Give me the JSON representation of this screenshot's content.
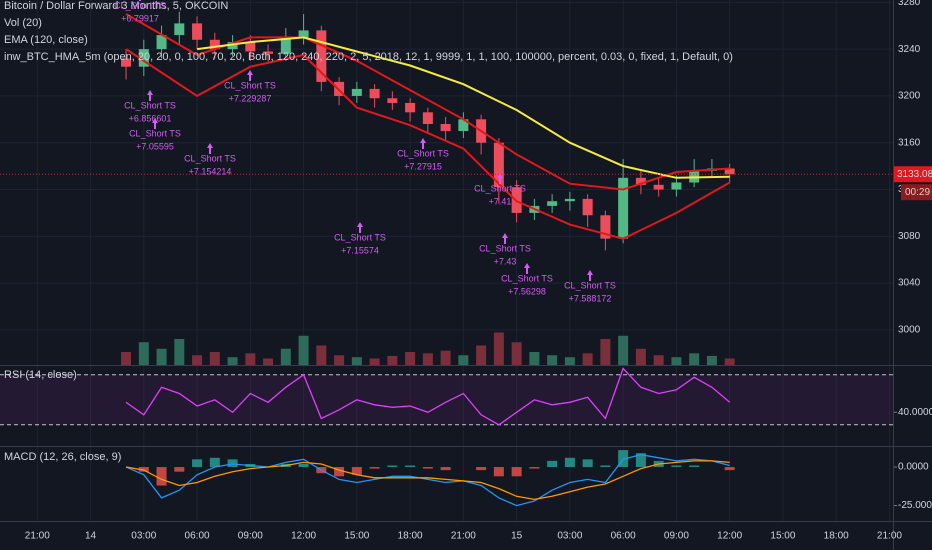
{
  "chart_data": [
    {
      "type": "candlestick",
      "title": "Bitcoin / Dollar Forward 3 Months, 5, OKCOIN",
      "indicator": "inw_BTC_HMA_5m (open, 20, 20, 0, 100, 70, 20, Both, 120, 240, 220, 2, 5, 2018, 12, 1, 9999, 1, 1, 100, 100000, percent, 0.03, 0, fixed, 1, Default, 0)",
      "xlim": [
        -2.1,
        48.2
      ],
      "xticks": [
        {
          "value": 0,
          "label": "21:00"
        },
        {
          "value": 3,
          "label": "14"
        },
        {
          "value": 6,
          "label": "03:00"
        },
        {
          "value": 9,
          "label": "06:00"
        },
        {
          "value": 12,
          "label": "09:00"
        },
        {
          "value": 15,
          "label": "12:00"
        },
        {
          "value": 18,
          "label": "15:00"
        },
        {
          "value": 21,
          "label": "18:00"
        },
        {
          "value": 24,
          "label": "21:00"
        },
        {
          "value": 27,
          "label": "15"
        },
        {
          "value": 30,
          "label": "03:00"
        },
        {
          "value": 33,
          "label": "06:00"
        },
        {
          "value": 36,
          "label": "09:00"
        },
        {
          "value": 39,
          "label": "12:00"
        },
        {
          "value": 42,
          "label": "15:00"
        },
        {
          "value": 45,
          "label": "18:00"
        },
        {
          "value": 48,
          "label": "21:00"
        }
      ],
      "ylim": [
        2970,
        3282
      ],
      "yticks": [
        3000,
        3040,
        3080,
        3120,
        3160,
        3200,
        3240,
        3280
      ],
      "grid": true,
      "up_color": "#53b987",
      "down_color": "#eb4d5c",
      "x": [
        5,
        6,
        7,
        8,
        9,
        10,
        11,
        12,
        13,
        14,
        15,
        16,
        17,
        18,
        19,
        20,
        21,
        22,
        23,
        24,
        25,
        26,
        27,
        28,
        29,
        30,
        31,
        32,
        33,
        34,
        35,
        36,
        37,
        38,
        39
      ],
      "open": [
        3232,
        3225,
        3240,
        3252,
        3262,
        3248,
        3240,
        3246,
        3238,
        3236,
        3250,
        3256,
        3212,
        3200,
        3206,
        3198,
        3194,
        3186,
        3176,
        3170,
        3180,
        3160,
        3122,
        3100,
        3106,
        3110,
        3112,
        3098,
        3078,
        3130,
        3124,
        3120,
        3126,
        3136,
        3138
      ],
      "high": [
        3240,
        3248,
        3260,
        3272,
        3268,
        3254,
        3252,
        3252,
        3244,
        3258,
        3270,
        3260,
        3216,
        3212,
        3210,
        3204,
        3198,
        3190,
        3182,
        3186,
        3184,
        3164,
        3128,
        3112,
        3116,
        3118,
        3116,
        3102,
        3146,
        3136,
        3130,
        3132,
        3146,
        3146,
        3142
      ],
      "low": [
        3214,
        3217,
        3232,
        3244,
        3240,
        3232,
        3234,
        3230,
        3228,
        3230,
        3244,
        3204,
        3192,
        3194,
        3190,
        3188,
        3178,
        3168,
        3162,
        3164,
        3150,
        3108,
        3092,
        3094,
        3100,
        3102,
        3088,
        3068,
        3074,
        3116,
        3114,
        3114,
        3122,
        3130,
        3126
      ],
      "close": [
        3225,
        3240,
        3252,
        3262,
        3248,
        3240,
        3246,
        3238,
        3236,
        3250,
        3256,
        3212,
        3200,
        3206,
        3198,
        3194,
        3186,
        3176,
        3170,
        3180,
        3160,
        3122,
        3100,
        3106,
        3110,
        3112,
        3098,
        3078,
        3130,
        3124,
        3120,
        3126,
        3136,
        3138,
        3133
      ],
      "series": [
        {
          "name": "EMA (120, close)",
          "color": "#f5ec42",
          "x": [
            9,
            12,
            15,
            18,
            21,
            24,
            27,
            30,
            33,
            36,
            39
          ],
          "values": [
            3240,
            3246,
            3250,
            3238,
            3226,
            3210,
            3188,
            3160,
            3140,
            3130,
            3131
          ]
        }
      ],
      "overlays": [
        {
          "color": "#e0191c",
          "x": [
            5,
            9,
            12,
            15,
            18,
            21,
            24,
            27,
            30,
            33,
            36,
            39
          ],
          "values": [
            3270,
            3235,
            3250,
            3250,
            3230,
            3205,
            3180,
            3150,
            3125,
            3120,
            3135,
            3138
          ]
        },
        {
          "color": "#e0191c",
          "x": [
            5,
            9,
            12,
            15,
            18,
            21,
            24,
            27,
            30,
            33,
            36,
            39
          ],
          "values": [
            3240,
            3200,
            3225,
            3235,
            3190,
            3175,
            3155,
            3110,
            3090,
            3078,
            3100,
            3126
          ]
        }
      ],
      "last_price": 3133.08,
      "timer": "00:29",
      "annotations": [
        {
          "label": "CL_Short TS",
          "value": "+6.79917"
        },
        {
          "label": "CL_Short TS",
          "value": "+6.856601"
        },
        {
          "label": "CL_Short TS",
          "value": "+7.05595"
        },
        {
          "label": "CL_Short TS",
          "value": "+7.154214"
        },
        {
          "label": "CL_Short TS",
          "value": "+7.229287"
        },
        {
          "label": "CL_Short TS",
          "value": "+7.15574"
        },
        {
          "label": "CL_Short TS",
          "value": "+7.27915"
        },
        {
          "label": "CL_Short TS",
          "value": "+7.41"
        },
        {
          "label": "CL_Short TS",
          "value": "+7.43"
        },
        {
          "label": "CL_Short TS",
          "value": "+7.56298"
        },
        {
          "label": "CL_Short TS",
          "value": "+7.588172"
        }
      ]
    },
    {
      "type": "bar",
      "name": "Vol (20)",
      "ylim": [
        0,
        100
      ],
      "up_color": "#2e6b5a",
      "down_color": "#7a2f3a",
      "x": [
        5,
        6,
        7,
        8,
        9,
        10,
        11,
        12,
        13,
        14,
        15,
        16,
        17,
        18,
        19,
        20,
        21,
        22,
        23,
        24,
        25,
        26,
        27,
        28,
        29,
        30,
        31,
        32,
        33,
        34,
        35,
        36,
        37,
        38,
        39
      ],
      "values": [
        20,
        35,
        25,
        40,
        15,
        20,
        12,
        18,
        10,
        25,
        45,
        30,
        15,
        12,
        10,
        14,
        20,
        18,
        22,
        15,
        30,
        50,
        35,
        20,
        15,
        12,
        18,
        40,
        45,
        25,
        15,
        12,
        18,
        14,
        10
      ]
    },
    {
      "type": "line",
      "title": "RSI (14, close)",
      "ylim": [
        13,
        77
      ],
      "yticks": [
        {
          "value": 40,
          "label": "40.0000"
        }
      ],
      "bands": [
        30,
        70
      ],
      "series": [
        {
          "color": "#e040fb",
          "x": [
            5,
            6,
            7,
            8,
            9,
            10,
            11,
            12,
            13,
            14,
            15,
            16,
            17,
            18,
            19,
            20,
            21,
            22,
            23,
            24,
            25,
            26,
            27,
            28,
            29,
            30,
            31,
            32,
            33,
            34,
            35,
            36,
            37,
            38,
            39
          ],
          "values": [
            48,
            38,
            60,
            55,
            45,
            50,
            40,
            55,
            48,
            60,
            70,
            35,
            42,
            50,
            46,
            44,
            45,
            40,
            48,
            55,
            38,
            30,
            40,
            50,
            46,
            48,
            52,
            35,
            75,
            60,
            55,
            58,
            68,
            60,
            48
          ]
        }
      ]
    },
    {
      "type": "line",
      "title": "MACD (12, 26, close, 9)",
      "ylim": [
        -35,
        13
      ],
      "yticks": [
        {
          "value": 0,
          "label": "0.0000"
        },
        {
          "value": -25,
          "label": "-25.0000"
        }
      ],
      "x": [
        5,
        6,
        7,
        8,
        9,
        10,
        11,
        12,
        13,
        14,
        15,
        16,
        17,
        18,
        19,
        20,
        21,
        22,
        23,
        24,
        25,
        26,
        27,
        28,
        29,
        30,
        31,
        32,
        33,
        34,
        35,
        36,
        37,
        38,
        39
      ],
      "histogram": [
        0,
        -3,
        -12,
        -3,
        5,
        6,
        5,
        2,
        0,
        2,
        2,
        -4,
        -6,
        -5,
        -1,
        1,
        1,
        -1,
        -2,
        0,
        -2,
        -6,
        -6,
        -1,
        4,
        6,
        5,
        1,
        11,
        9,
        4,
        1,
        1,
        0,
        -2
      ],
      "histogram_colors": [
        "#26a69a",
        "#ef5350"
      ],
      "series": [
        {
          "color": "#2196f3",
          "x": [
            5,
            6,
            7,
            8,
            9,
            10,
            11,
            12,
            13,
            14,
            15,
            16,
            17,
            18,
            19,
            20,
            21,
            22,
            23,
            24,
            25,
            26,
            27,
            28,
            29,
            30,
            31,
            32,
            33,
            34,
            35,
            36,
            37,
            38,
            39
          ],
          "values": [
            0,
            -5,
            -20,
            -15,
            -5,
            0,
            2,
            1,
            0,
            3,
            5,
            -2,
            -8,
            -10,
            -8,
            -6,
            -6,
            -8,
            -10,
            -9,
            -12,
            -20,
            -25,
            -22,
            -15,
            -10,
            -8,
            -10,
            5,
            8,
            6,
            4,
            5,
            4,
            1
          ]
        },
        {
          "color": "#ff9800",
          "x": [
            5,
            6,
            7,
            8,
            9,
            10,
            11,
            12,
            13,
            14,
            15,
            16,
            17,
            18,
            19,
            20,
            21,
            22,
            23,
            24,
            25,
            26,
            27,
            28,
            29,
            30,
            31,
            32,
            33,
            34,
            35,
            36,
            37,
            38,
            39
          ],
          "values": [
            0,
            -2,
            -8,
            -12,
            -10,
            -6,
            -3,
            -1,
            0,
            1,
            3,
            2,
            -2,
            -5,
            -7,
            -7,
            -7,
            -7,
            -8,
            -9,
            -10,
            -14,
            -19,
            -21,
            -19,
            -16,
            -13,
            -11,
            -6,
            -1,
            2,
            3,
            4,
            4,
            3
          ]
        }
      ]
    }
  ]
}
